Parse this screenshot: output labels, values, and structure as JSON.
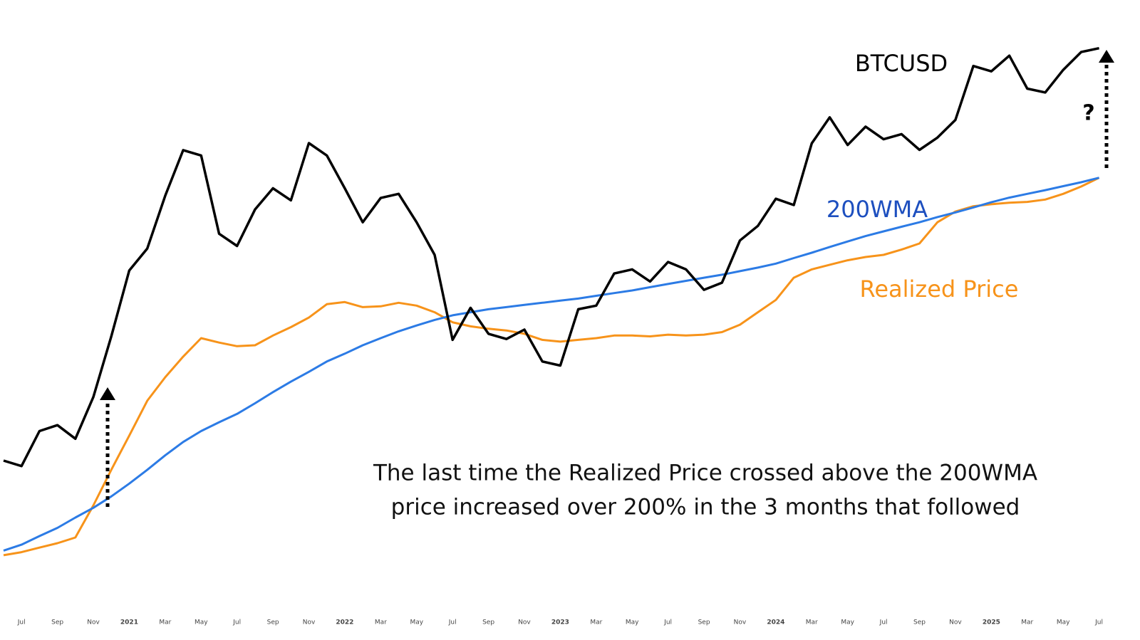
{
  "chart_data": {
    "type": "line",
    "log_scale": true,
    "grid": false,
    "x": [
      "2020-06",
      "2020-07",
      "2020-08",
      "2020-09",
      "2020-10",
      "2020-11",
      "2020-12",
      "2021-01",
      "2021-02",
      "2021-03",
      "2021-04",
      "2021-05",
      "2021-06",
      "2021-07",
      "2021-08",
      "2021-09",
      "2021-10",
      "2021-11",
      "2021-12",
      "2022-01",
      "2022-02",
      "2022-03",
      "2022-04",
      "2022-05",
      "2022-06",
      "2022-07",
      "2022-08",
      "2022-09",
      "2022-10",
      "2022-11",
      "2022-12",
      "2023-01",
      "2023-02",
      "2023-03",
      "2023-04",
      "2023-05",
      "2023-06",
      "2023-07",
      "2023-08",
      "2023-09",
      "2023-10",
      "2023-11",
      "2023-12",
      "2024-01",
      "2024-02",
      "2024-03",
      "2024-04",
      "2024-05",
      "2024-06",
      "2024-07",
      "2024-08",
      "2024-09",
      "2024-10",
      "2024-11",
      "2024-12",
      "2025-01",
      "2025-02",
      "2025-03",
      "2025-04",
      "2025-05",
      "2025-06",
      "2025-07"
    ],
    "series": [
      {
        "name": "BTCUSD",
        "color": "#000000",
        "values": [
          9500,
          9200,
          11300,
          11700,
          10800,
          13800,
          19700,
          29000,
          33000,
          45000,
          58800,
          57000,
          36000,
          33500,
          41500,
          47000,
          43800,
          61300,
          57000,
          47000,
          38500,
          44400,
          45500,
          38500,
          31800,
          19300,
          23300,
          20000,
          19400,
          20500,
          17000,
          16600,
          23100,
          23600,
          28500,
          29200,
          27200,
          30500,
          29200,
          25900,
          27000,
          34600,
          37700,
          44200,
          42600,
          61200,
          71300,
          60600,
          67500,
          62700,
          64600,
          58900,
          63300,
          70200,
          96400,
          93400,
          102400,
          84400,
          82500,
          94200,
          104600,
          107000
        ]
      },
      {
        "name": "200WMA",
        "color": "#2c7be5",
        "values": [
          5600,
          5800,
          6100,
          6400,
          6800,
          7200,
          7700,
          8300,
          9000,
          9800,
          10600,
          11300,
          11900,
          12500,
          13300,
          14200,
          15100,
          16000,
          17000,
          17800,
          18700,
          19500,
          20300,
          21000,
          21700,
          22300,
          22700,
          23100,
          23400,
          23700,
          24000,
          24300,
          24600,
          25000,
          25400,
          25800,
          26300,
          26800,
          27300,
          27800,
          28300,
          28900,
          29500,
          30200,
          31200,
          32200,
          33300,
          34400,
          35500,
          36500,
          37500,
          38500,
          39700,
          40800,
          42000,
          43300,
          44500,
          45500,
          46500,
          47600,
          48700,
          50000
        ]
      },
      {
        "name": "Realized Price",
        "color": "#f7931a",
        "values": [
          5450,
          5550,
          5700,
          5850,
          6050,
          7300,
          9000,
          11000,
          13500,
          15500,
          17500,
          19500,
          19000,
          18600,
          18700,
          19800,
          20800,
          22000,
          23800,
          24100,
          23400,
          23500,
          24000,
          23600,
          22700,
          21400,
          20900,
          20600,
          20400,
          20000,
          19300,
          19100,
          19300,
          19500,
          19800,
          19800,
          19700,
          19900,
          19800,
          19900,
          20200,
          21100,
          22700,
          24400,
          27800,
          29200,
          30000,
          30800,
          31400,
          31800,
          32800,
          34000,
          38500,
          41000,
          42300,
          42800,
          43200,
          43400,
          44000,
          45500,
          47500,
          50000
        ]
      }
    ],
    "xlim": [
      "2020-06",
      "2025-09"
    ],
    "xticks": [
      {
        "value": "2020-07",
        "label": "Jul"
      },
      {
        "value": "2020-09",
        "label": "Sep"
      },
      {
        "value": "2020-11",
        "label": "Nov"
      },
      {
        "value": "2021-01",
        "label": "2021"
      },
      {
        "value": "2021-03",
        "label": "Mar"
      },
      {
        "value": "2021-05",
        "label": "May"
      },
      {
        "value": "2021-07",
        "label": "Jul"
      },
      {
        "value": "2021-09",
        "label": "Sep"
      },
      {
        "value": "2021-11",
        "label": "Nov"
      },
      {
        "value": "2022-01",
        "label": "2022"
      },
      {
        "value": "2022-03",
        "label": "Mar"
      },
      {
        "value": "2022-05",
        "label": "May"
      },
      {
        "value": "2022-07",
        "label": "Jul"
      },
      {
        "value": "2022-09",
        "label": "Sep"
      },
      {
        "value": "2022-11",
        "label": "Nov"
      },
      {
        "value": "2023-01",
        "label": "2023"
      },
      {
        "value": "2023-03",
        "label": "Mar"
      },
      {
        "value": "2023-05",
        "label": "May"
      },
      {
        "value": "2023-07",
        "label": "Jul"
      },
      {
        "value": "2023-09",
        "label": "Sep"
      },
      {
        "value": "2023-11",
        "label": "Nov"
      },
      {
        "value": "2024-01",
        "label": "2024"
      },
      {
        "value": "2024-03",
        "label": "Mar"
      },
      {
        "value": "2024-05",
        "label": "May"
      },
      {
        "value": "2024-07",
        "label": "Jul"
      },
      {
        "value": "2024-09",
        "label": "Sep"
      },
      {
        "value": "2024-11",
        "label": "Nov"
      },
      {
        "value": "2025-01",
        "label": "2025"
      },
      {
        "value": "2025-03",
        "label": "Mar"
      },
      {
        "value": "2025-05",
        "label": "May"
      },
      {
        "value": "2025-07",
        "label": "Jul"
      }
    ],
    "ylim": [
      3900,
      142000
    ],
    "annotations": [
      "?",
      "The last time the Realized Price crossed above the 200WMA",
      "price increased over 200% in the 3 months that followed"
    ]
  }
}
